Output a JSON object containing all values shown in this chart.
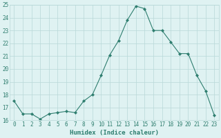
{
  "x": [
    0,
    1,
    2,
    3,
    4,
    5,
    6,
    7,
    8,
    9,
    10,
    11,
    12,
    13,
    14,
    15,
    16,
    17,
    18,
    19,
    20,
    21,
    22,
    23
  ],
  "y": [
    17.5,
    16.5,
    16.5,
    16.1,
    16.5,
    16.6,
    16.7,
    16.6,
    17.5,
    18.0,
    19.5,
    21.1,
    22.2,
    23.8,
    24.9,
    24.7,
    23.0,
    23.0,
    22.1,
    21.2,
    21.2,
    19.5,
    18.3,
    16.4
  ],
  "line_color": "#2d7d6e",
  "marker": "D",
  "marker_size": 2.2,
  "bg_color": "#dff2f2",
  "grid_color": "#b8d8d8",
  "xlabel": "Humidex (Indice chaleur)",
  "ylim": [
    16,
    25
  ],
  "xlim": [
    -0.5,
    23.5
  ],
  "yticks": [
    16,
    17,
    18,
    19,
    20,
    21,
    22,
    23,
    24,
    25
  ],
  "xticks": [
    0,
    1,
    2,
    3,
    4,
    5,
    6,
    7,
    8,
    9,
    10,
    11,
    12,
    13,
    14,
    15,
    16,
    17,
    18,
    19,
    20,
    21,
    22,
    23
  ],
  "label_fontsize": 6.5,
  "tick_fontsize": 5.5
}
